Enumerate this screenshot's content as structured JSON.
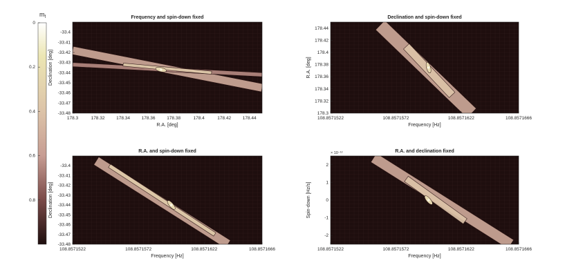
{
  "colormap": {
    "label": "m",
    "label_sub": "f",
    "ticks": [
      "0",
      "0.2",
      "0.4",
      "0.6",
      "0.8"
    ],
    "range": [
      0,
      1
    ],
    "colors": {
      "top": "#ffffff",
      "upper": "#ece6b3",
      "mid": "#c79d93",
      "lower": "#7a4a48",
      "bottom": "#1e0e0e"
    }
  },
  "chart_data": [
    {
      "type": "heatmap",
      "title": "Frequency and spin-down fixed",
      "xlabel": "R.A. [deg]",
      "ylabel": "Declination [deg]",
      "xticks": [
        "178.3",
        "178.32",
        "178.34",
        "178.36",
        "178.38",
        "178.4",
        "178.42",
        "178.44"
      ],
      "yticks": [
        "-33.4",
        "-33.41",
        "-33.42",
        "-33.43",
        "-33.44",
        "-33.45",
        "-33.46",
        "-33.47",
        "-33.48"
      ],
      "xlim": [
        178.3,
        178.45
      ],
      "ylim": [
        -33.48,
        -33.39
      ],
      "exponent": "",
      "peak": {
        "x": 178.37,
        "y": -33.437,
        "value": 0.05
      },
      "bands": [
        {
          "from": [
            178.3,
            -33.418
          ],
          "to": [
            178.45,
            -33.455
          ],
          "width": 0.008,
          "mf": 0.55
        },
        {
          "from": [
            178.3,
            -33.432
          ],
          "to": [
            178.45,
            -33.442
          ],
          "width": 0.004,
          "mf": 0.65
        },
        {
          "from": [
            178.34,
            -33.432
          ],
          "to": [
            178.41,
            -33.44
          ],
          "width": 0.003,
          "mf": 0.35
        }
      ]
    },
    {
      "type": "heatmap",
      "title": "Declination and spin-down fixed",
      "xlabel": "Frequency [Hz]",
      "ylabel": "R.A. [deg]",
      "xticks": [
        "108.8571522",
        "108.8571572",
        "108.8571622",
        "108.8571666"
      ],
      "yticks": [
        "178.3",
        "178.32",
        "178.34",
        "178.36",
        "178.38",
        "178.4",
        "178.42",
        "178.44"
      ],
      "xlim": [
        108.8571522,
        108.8571666
      ],
      "ylim": [
        178.3,
        178.45
      ],
      "exponent": "",
      "peak": {
        "x": 108.8571597,
        "y": 178.375,
        "value": 0.05
      },
      "bands": [
        {
          "from": [
            108.857156,
            178.445
          ],
          "to": [
            108.857163,
            178.3
          ],
          "width": 1e-06,
          "mf": 0.55
        },
        {
          "from": [
            108.857158,
            178.41
          ],
          "to": [
            108.8571615,
            178.33
          ],
          "width": 6e-07,
          "mf": 0.4
        }
      ]
    },
    {
      "type": "heatmap",
      "title": "R.A. and spin-down fixed",
      "xlabel": "Frequency [Hz]",
      "ylabel": "Declination [deg]",
      "xticks": [
        "108.8571522",
        "108.8571572",
        "108.8571622",
        "108.8571666"
      ],
      "yticks": [
        "-33.4",
        "-33.41",
        "-33.42",
        "-33.43",
        "-33.44",
        "-33.45",
        "-33.46",
        "-33.47",
        "-33.48"
      ],
      "xlim": [
        108.8571522,
        108.8571666
      ],
      "ylim": [
        -33.48,
        -33.39
      ],
      "exponent": "",
      "peak": {
        "x": 108.8571597,
        "y": -33.44,
        "value": 0.05
      },
      "bands": [
        {
          "from": [
            108.857154,
            -33.395
          ],
          "to": [
            108.857164,
            -33.48
          ],
          "width": 7e-07,
          "mf": 0.55
        },
        {
          "from": [
            108.857155,
            -33.4
          ],
          "to": [
            108.857163,
            -33.47
          ],
          "width": 3e-07,
          "mf": 0.35
        }
      ]
    },
    {
      "type": "heatmap",
      "title": "R.A. and declination fixed",
      "xlabel": "Frequency [Hz]",
      "ylabel": "Spin-down [Hz/s]",
      "xticks": [
        "108.8571522",
        "108.8571572",
        "108.8571622",
        "108.8571666"
      ],
      "yticks": [
        "2",
        "1",
        "0",
        "-1",
        "-2"
      ],
      "xlim": [
        108.8571522,
        108.8571666
      ],
      "ylim": [
        -2.5,
        2.5
      ],
      "exponent": "× 10⁻¹²",
      "peak": {
        "x": 108.8571597,
        "y": 0.0,
        "value": 0.05
      },
      "bands": [
        {
          "from": [
            108.8571555,
            2.4
          ],
          "to": [
            108.857166,
            -2.5
          ],
          "width": 8e-07,
          "mf": 0.55
        },
        {
          "from": [
            108.857158,
            1.2
          ],
          "to": [
            108.8571625,
            -1.2
          ],
          "width": 5e-07,
          "mf": 0.4
        }
      ]
    }
  ]
}
